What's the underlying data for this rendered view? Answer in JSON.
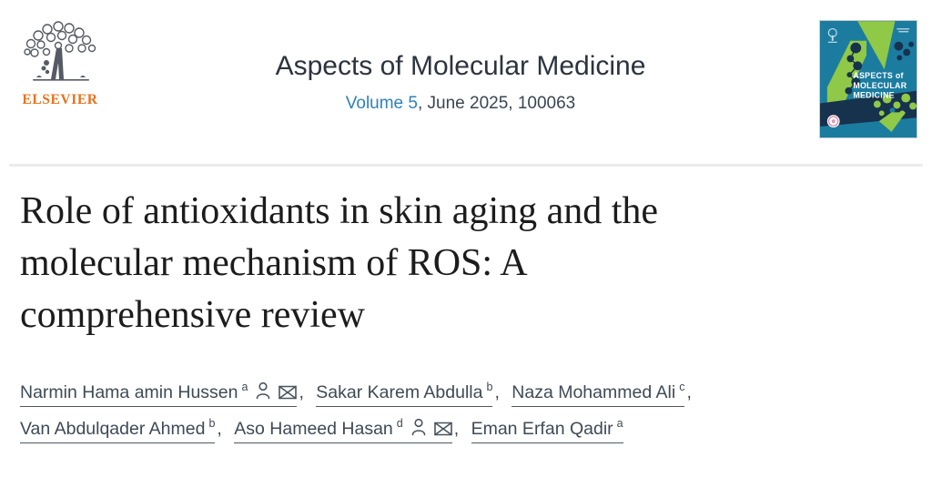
{
  "publisher": {
    "name": "ELSEVIER"
  },
  "journal": {
    "title": "Aspects of Molecular Medicine",
    "volume_link": "Volume 5",
    "issue_info": ", June 2025, 100063"
  },
  "cover": {
    "title_lines": [
      "ASPECTS of",
      "MOLECULAR",
      "MEDICINE"
    ]
  },
  "article": {
    "title": "Role of antioxidants in skin aging and the molecular mechanism of ROS: A comprehensive review",
    "title_lines": [
      "Role of antioxidants in skin aging and the",
      "molecular mechanism of ROS: A",
      "comprehensive review"
    ]
  },
  "authors": {
    "separator": ", ",
    "lines": [
      [
        {
          "name": "Narmin Hama amin Hussen",
          "sup": "a",
          "icons": [
            "person",
            "envelope"
          ]
        },
        {
          "name": "Sakar Karem Abdulla",
          "sup": "b",
          "icons": []
        },
        {
          "name": "Naza Mohammed Ali",
          "sup": "c",
          "icons": []
        }
      ],
      [
        {
          "name": "Van Abdulqader Ahmed",
          "sup": "b",
          "icons": []
        },
        {
          "name": "Aso Hameed Hasan",
          "sup": "d",
          "icons": [
            "person",
            "envelope"
          ]
        },
        {
          "name": "Eman Erfan Qadir",
          "sup": "a",
          "icons": []
        }
      ]
    ]
  },
  "colors": {
    "elsevier_orange": "#e9711c",
    "link_blue": "#2e81bd",
    "heading": "#2d333e",
    "meta_text": "#3a4653",
    "title_text": "#1c1c1c",
    "author_text": "#3e4a56",
    "divider": "#ececec",
    "logo_gray": "#565a63",
    "cover_teal": "#1b7ca0",
    "cover_green": "#90c847",
    "cover_navy": "#17324d"
  }
}
